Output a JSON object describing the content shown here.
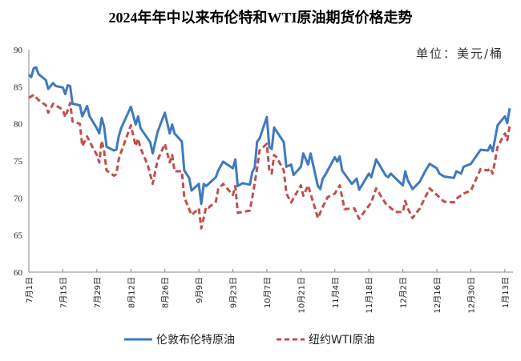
{
  "chart_data": {
    "type": "line",
    "title": "2024年年中以来布伦特和WTI原油期货价格走势",
    "unit_label": "单位：美元/桶",
    "xlabel": "",
    "ylabel": "",
    "ylim": [
      60,
      90
    ],
    "y_ticks": [
      "60",
      "65",
      "70",
      "75",
      "80",
      "85",
      "90"
    ],
    "x_range": [
      "2024-07-01",
      "2025-01-15"
    ],
    "x_tick_labels": [
      "7月1日",
      "7月15日",
      "7月29日",
      "8月12日",
      "8月26日",
      "9月9日",
      "9月23日",
      "10月7日",
      "10月21日",
      "11月4日",
      "11月18日",
      "12月2日",
      "12月16日",
      "12月30日",
      "1月13日"
    ],
    "grid": false,
    "legend_position": "bottom",
    "series": [
      {
        "name": "伦敦布伦特原油",
        "color": "#3f7abf",
        "style": "solid",
        "points": [
          [
            "2024-07-01",
            86.6
          ],
          [
            "2024-07-02",
            86.3
          ],
          [
            "2024-07-03",
            87.5
          ],
          [
            "2024-07-04",
            87.6
          ],
          [
            "2024-07-05",
            86.7
          ],
          [
            "2024-07-08",
            85.9
          ],
          [
            "2024-07-09",
            84.7
          ],
          [
            "2024-07-11",
            85.5
          ],
          [
            "2024-07-12",
            85.1
          ],
          [
            "2024-07-15",
            84.9
          ],
          [
            "2024-07-16",
            84.0
          ],
          [
            "2024-07-17",
            85.2
          ],
          [
            "2024-07-18",
            85.1
          ],
          [
            "2024-07-19",
            82.7
          ],
          [
            "2024-07-22",
            82.5
          ],
          [
            "2024-07-23",
            81.0
          ],
          [
            "2024-07-25",
            82.4
          ],
          [
            "2024-07-26",
            81.0
          ],
          [
            "2024-07-29",
            79.4
          ],
          [
            "2024-07-30",
            78.7
          ],
          [
            "2024-07-31",
            80.8
          ],
          [
            "2024-08-01",
            79.6
          ],
          [
            "2024-08-02",
            76.9
          ],
          [
            "2024-08-05",
            76.4
          ],
          [
            "2024-08-06",
            76.5
          ],
          [
            "2024-08-07",
            78.3
          ],
          [
            "2024-08-08",
            79.4
          ],
          [
            "2024-08-12",
            82.3
          ],
          [
            "2024-08-14",
            79.9
          ],
          [
            "2024-08-15",
            81.0
          ],
          [
            "2024-08-16",
            79.4
          ],
          [
            "2024-08-20",
            77.5
          ],
          [
            "2024-08-21",
            76.0
          ],
          [
            "2024-08-23",
            78.9
          ],
          [
            "2024-08-26",
            81.5
          ],
          [
            "2024-08-28",
            78.7
          ],
          [
            "2024-08-29",
            79.9
          ],
          [
            "2024-08-30",
            78.7
          ],
          [
            "2024-09-02",
            77.6
          ],
          [
            "2024-09-03",
            73.7
          ],
          [
            "2024-09-05",
            72.7
          ],
          [
            "2024-09-06",
            71.0
          ],
          [
            "2024-09-09",
            71.9
          ],
          [
            "2024-09-10",
            69.2
          ],
          [
            "2024-09-11",
            71.9
          ],
          [
            "2024-09-12",
            71.6
          ],
          [
            "2024-09-16",
            72.8
          ],
          [
            "2024-09-17",
            73.7
          ],
          [
            "2024-09-19",
            74.9
          ],
          [
            "2024-09-23",
            74.0
          ],
          [
            "2024-09-24",
            75.2
          ],
          [
            "2024-09-25",
            71.6
          ],
          [
            "2024-09-27",
            72.0
          ],
          [
            "2024-09-30",
            71.8
          ],
          [
            "2024-10-01",
            73.5
          ],
          [
            "2024-10-02",
            74.1
          ],
          [
            "2024-10-03",
            77.6
          ],
          [
            "2024-10-04",
            78.0
          ],
          [
            "2024-10-07",
            80.9
          ],
          [
            "2024-10-08",
            76.9
          ],
          [
            "2024-10-09",
            76.6
          ],
          [
            "2024-10-10",
            79.5
          ],
          [
            "2024-10-14",
            77.5
          ],
          [
            "2024-10-15",
            74.2
          ],
          [
            "2024-10-17",
            74.5
          ],
          [
            "2024-10-18",
            73.1
          ],
          [
            "2024-10-21",
            74.2
          ],
          [
            "2024-10-22",
            76.0
          ],
          [
            "2024-10-24",
            74.5
          ],
          [
            "2024-10-25",
            76.0
          ],
          [
            "2024-10-28",
            71.6
          ],
          [
            "2024-10-29",
            71.2
          ],
          [
            "2024-10-30",
            72.6
          ],
          [
            "2024-10-31",
            73.1
          ],
          [
            "2024-11-04",
            75.5
          ],
          [
            "2024-11-05",
            74.9
          ],
          [
            "2024-11-06",
            75.6
          ],
          [
            "2024-11-07",
            73.7
          ],
          [
            "2024-11-11",
            71.9
          ],
          [
            "2024-11-13",
            72.6
          ],
          [
            "2024-11-14",
            71.1
          ],
          [
            "2024-11-18",
            73.3
          ],
          [
            "2024-11-19",
            72.8
          ],
          [
            "2024-11-21",
            75.2
          ],
          [
            "2024-11-25",
            73.0
          ],
          [
            "2024-11-26",
            72.8
          ],
          [
            "2024-11-27",
            73.3
          ],
          [
            "2024-12-02",
            71.7
          ],
          [
            "2024-12-03",
            73.6
          ],
          [
            "2024-12-04",
            72.4
          ],
          [
            "2024-12-06",
            71.2
          ],
          [
            "2024-12-09",
            72.2
          ],
          [
            "2024-12-11",
            73.5
          ],
          [
            "2024-12-13",
            74.6
          ],
          [
            "2024-12-16",
            74.0
          ],
          [
            "2024-12-17",
            73.3
          ],
          [
            "2024-12-19",
            72.9
          ],
          [
            "2024-12-23",
            72.7
          ],
          [
            "2024-12-24",
            73.6
          ],
          [
            "2024-12-26",
            73.3
          ],
          [
            "2024-12-27",
            74.2
          ],
          [
            "2024-12-30",
            74.6
          ],
          [
            "2025-01-03",
            76.5
          ],
          [
            "2025-01-06",
            76.4
          ],
          [
            "2025-01-07",
            77.1
          ],
          [
            "2025-01-08",
            76.3
          ],
          [
            "2025-01-10",
            79.8
          ],
          [
            "2025-01-13",
            81.0
          ],
          [
            "2025-01-14",
            80.1
          ],
          [
            "2025-01-15",
            82.1
          ]
        ]
      },
      {
        "name": "纽约WTI原油",
        "color": "#c0504d",
        "style": "dashed",
        "points": [
          [
            "2024-07-01",
            83.5
          ],
          [
            "2024-07-03",
            83.9
          ],
          [
            "2024-07-05",
            83.2
          ],
          [
            "2024-07-08",
            82.5
          ],
          [
            "2024-07-09",
            81.5
          ],
          [
            "2024-07-11",
            82.7
          ],
          [
            "2024-07-15",
            81.9
          ],
          [
            "2024-07-16",
            80.9
          ],
          [
            "2024-07-18",
            82.8
          ],
          [
            "2024-07-19",
            80.3
          ],
          [
            "2024-07-22",
            80.0
          ],
          [
            "2024-07-23",
            77.0
          ],
          [
            "2024-07-25",
            78.3
          ],
          [
            "2024-07-26",
            77.6
          ],
          [
            "2024-07-29",
            75.8
          ],
          [
            "2024-07-30",
            74.8
          ],
          [
            "2024-07-31",
            77.7
          ],
          [
            "2024-08-01",
            76.3
          ],
          [
            "2024-08-02",
            73.7
          ],
          [
            "2024-08-05",
            73.0
          ],
          [
            "2024-08-06",
            73.2
          ],
          [
            "2024-08-07",
            75.2
          ],
          [
            "2024-08-08",
            76.2
          ],
          [
            "2024-08-12",
            79.8
          ],
          [
            "2024-08-14",
            77.0
          ],
          [
            "2024-08-15",
            78.0
          ],
          [
            "2024-08-16",
            76.7
          ],
          [
            "2024-08-19",
            74.4
          ],
          [
            "2024-08-21",
            71.9
          ],
          [
            "2024-08-23",
            75.1
          ],
          [
            "2024-08-26",
            77.3
          ],
          [
            "2024-08-28",
            74.8
          ],
          [
            "2024-08-29",
            75.8
          ],
          [
            "2024-08-30",
            73.6
          ],
          [
            "2024-09-02",
            73.6
          ],
          [
            "2024-09-03",
            70.1
          ],
          [
            "2024-09-06",
            67.7
          ],
          [
            "2024-09-09",
            68.6
          ],
          [
            "2024-09-10",
            65.9
          ],
          [
            "2024-09-12",
            68.8
          ],
          [
            "2024-09-13",
            68.7
          ],
          [
            "2024-09-16",
            69.5
          ],
          [
            "2024-09-17",
            71.2
          ],
          [
            "2024-09-19",
            71.9
          ],
          [
            "2024-09-23",
            70.4
          ],
          [
            "2024-09-24",
            71.6
          ],
          [
            "2024-09-25",
            68.0
          ],
          [
            "2024-09-30",
            68.3
          ],
          [
            "2024-10-01",
            70.1
          ],
          [
            "2024-10-03",
            74.0
          ],
          [
            "2024-10-04",
            76.4
          ],
          [
            "2024-10-07",
            77.3
          ],
          [
            "2024-10-08",
            73.7
          ],
          [
            "2024-10-09",
            73.3
          ],
          [
            "2024-10-10",
            75.8
          ],
          [
            "2024-10-11",
            75.5
          ],
          [
            "2024-10-14",
            73.7
          ],
          [
            "2024-10-15",
            70.6
          ],
          [
            "2024-10-17",
            69.4
          ],
          [
            "2024-10-21",
            71.7
          ],
          [
            "2024-10-22",
            70.3
          ],
          [
            "2024-10-24",
            71.7
          ],
          [
            "2024-10-28",
            67.3
          ],
          [
            "2024-10-30",
            68.8
          ],
          [
            "2024-11-01",
            70.1
          ],
          [
            "2024-11-04",
            70.6
          ],
          [
            "2024-11-06",
            71.7
          ],
          [
            "2024-11-08",
            68.5
          ],
          [
            "2024-11-12",
            68.6
          ],
          [
            "2024-11-14",
            67.2
          ],
          [
            "2024-11-19",
            69.4
          ],
          [
            "2024-11-21",
            71.3
          ],
          [
            "2024-11-25",
            69.2
          ],
          [
            "2024-11-29",
            68.1
          ],
          [
            "2024-12-02",
            68.1
          ],
          [
            "2024-12-03",
            69.6
          ],
          [
            "2024-12-04",
            68.6
          ],
          [
            "2024-12-06",
            67.3
          ],
          [
            "2024-12-09",
            68.6
          ],
          [
            "2024-12-13",
            71.3
          ],
          [
            "2024-12-17",
            70.1
          ],
          [
            "2024-12-19",
            69.5
          ],
          [
            "2024-12-23",
            69.4
          ],
          [
            "2024-12-24",
            69.9
          ],
          [
            "2024-12-27",
            70.6
          ],
          [
            "2024-12-30",
            71.0
          ],
          [
            "2025-01-03",
            73.9
          ],
          [
            "2025-01-06",
            73.7
          ],
          [
            "2025-01-07",
            74.0
          ],
          [
            "2025-01-08",
            73.3
          ],
          [
            "2025-01-10",
            76.9
          ],
          [
            "2025-01-13",
            78.7
          ],
          [
            "2025-01-14",
            77.8
          ],
          [
            "2025-01-15",
            79.8
          ]
        ]
      }
    ]
  }
}
